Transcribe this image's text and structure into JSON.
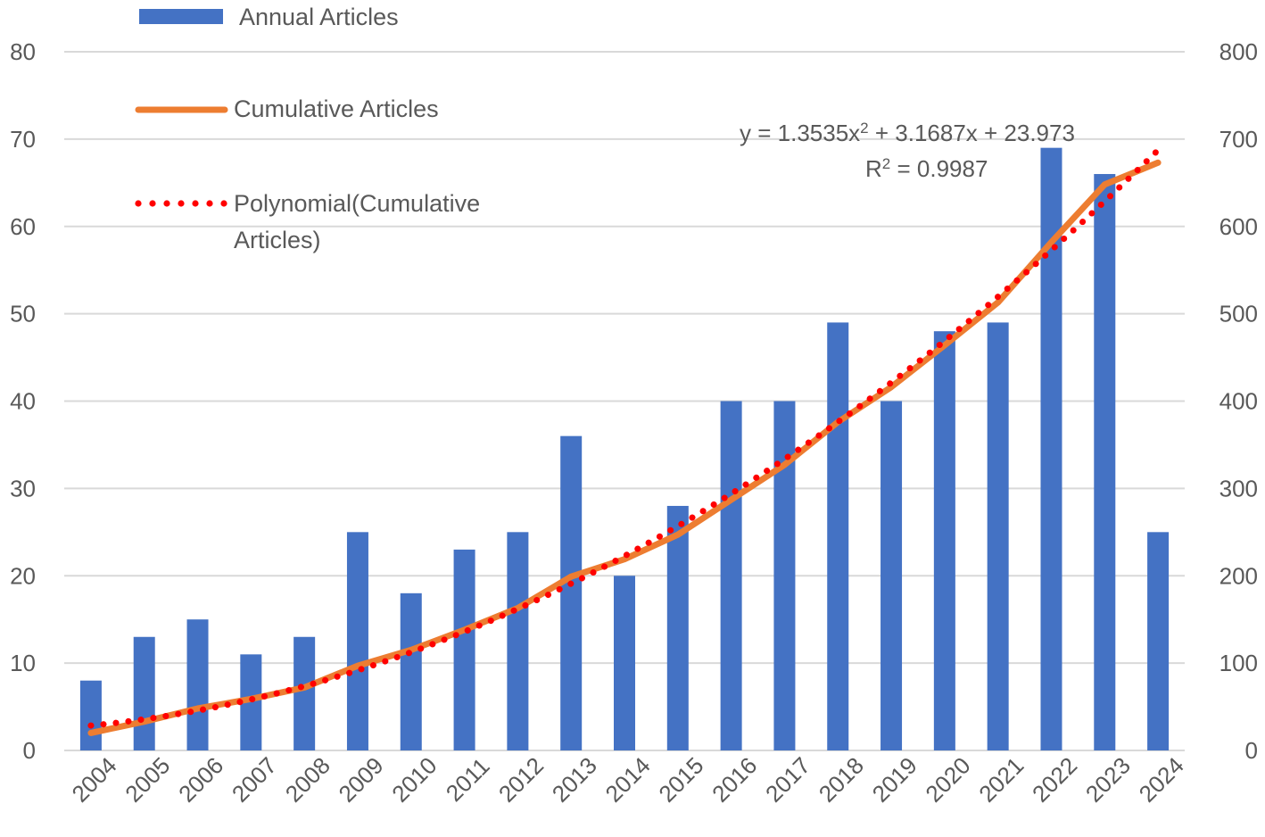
{
  "chart_data": {
    "type": "bar",
    "title": "",
    "xlabel": "",
    "ylabel": "",
    "ylabel_right": "",
    "categories": [
      "2004",
      "2005",
      "2006",
      "2007",
      "2008",
      "2009",
      "2010",
      "2011",
      "2012",
      "2013",
      "2014",
      "2015",
      "2016",
      "2017",
      "2018",
      "2019",
      "2020",
      "2021",
      "2022",
      "2023",
      "2024"
    ],
    "ylim": [
      0,
      80
    ],
    "ylim_right": [
      0,
      800
    ],
    "yticks": [
      "0",
      "10",
      "20",
      "30",
      "40",
      "50",
      "60",
      "70",
      "80"
    ],
    "yticks_right": [
      "0",
      "100",
      "200",
      "300",
      "400",
      "500",
      "600",
      "700",
      "800"
    ],
    "grid": true,
    "series": [
      {
        "name": "Annual Articles",
        "type": "bar",
        "axis": "left",
        "color": "#4472C4",
        "values": [
          8,
          13,
          15,
          11,
          13,
          25,
          18,
          23,
          25,
          36,
          20,
          28,
          40,
          40,
          49,
          40,
          48,
          49,
          69,
          66,
          25
        ]
      },
      {
        "name": "Cumulative Articles",
        "type": "line",
        "axis": "right",
        "color": "#ED7D31",
        "values": [
          20,
          33,
          48,
          59,
          72,
          97,
          115,
          138,
          163,
          199,
          219,
          247,
          287,
          327,
          376,
          416,
          464,
          513,
          582,
          648,
          673
        ]
      },
      {
        "name": "Polynomial(Cumulative Articles)",
        "type": "trendline-polynomial",
        "axis": "right",
        "color": "#FF0000",
        "style": "dotted",
        "coefficients": {
          "a": 1.3535,
          "b": 3.1687,
          "c": 23.973
        }
      }
    ],
    "legend": [
      {
        "label": "Annual Articles",
        "marker": "bar"
      },
      {
        "label": "Cumulative Articles",
        "marker": "line"
      },
      {
        "label_line1": "Polynomial(Cumulative",
        "label_line2": "Articles)",
        "marker": "dotted"
      }
    ],
    "legend_position": "top-left",
    "annotation": {
      "equation_prefix": "y = 1.3535x",
      "equation_sup": "2",
      "equation_suffix": " + 3.1687x + 23.973",
      "r2_prefix": "R",
      "r2_sup": "2",
      "r2_suffix": " = 0.9987"
    }
  }
}
